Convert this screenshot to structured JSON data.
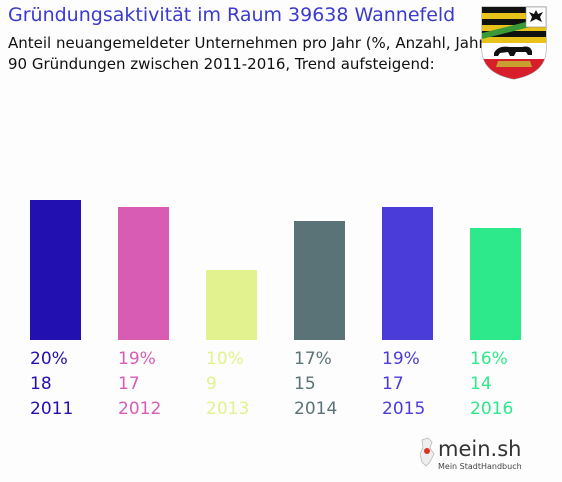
{
  "header": {
    "title": "Gründungsaktivität im Raum 39638 Wannefeld",
    "subtitle_line1": "Anteil neuangemeldeter Unternehmen pro Jahr (%, Anzahl, Jahr)",
    "subtitle_line2": "90 Gründungen zwischen 2011-2016, Trend aufsteigend:"
  },
  "emblem": {
    "icon": "saxony-anhalt-coat-of-arms-icon"
  },
  "chart_data": {
    "type": "bar",
    "categories": [
      "2011",
      "2012",
      "2013",
      "2014",
      "2015",
      "2016"
    ],
    "values": [
      20,
      19,
      10,
      17,
      19,
      16
    ],
    "counts": [
      18,
      17,
      9,
      15,
      17,
      14
    ],
    "percent_labels": [
      "20%",
      "19%",
      "10%",
      "17%",
      "19%",
      "16%"
    ],
    "colors": [
      "#2210b0",
      "#d85cb4",
      "#e2f28e",
      "#5a7376",
      "#4a3cd8",
      "#2ee88c"
    ],
    "title": "",
    "xlabel": "",
    "ylabel": "",
    "grid": false
  },
  "footer": {
    "brand_name": "mein.sh",
    "brand_tagline": "Mein StadtHandbuch",
    "brand_icon": "germany-map-pin-icon"
  }
}
